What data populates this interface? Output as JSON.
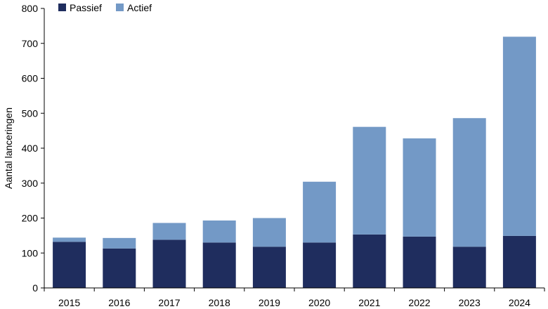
{
  "chart_data": {
    "type": "bar",
    "stacked": true,
    "categories": [
      "2015",
      "2016",
      "2017",
      "2018",
      "2019",
      "2020",
      "2021",
      "2022",
      "2023",
      "2024"
    ],
    "series": [
      {
        "name": "Passief",
        "color": "#1f2d5e",
        "values": [
          132,
          113,
          138,
          130,
          118,
          130,
          153,
          147,
          118,
          149
        ]
      },
      {
        "name": "Actief",
        "color": "#7399c6",
        "values": [
          12,
          30,
          48,
          63,
          82,
          174,
          308,
          281,
          368,
          570
        ]
      }
    ],
    "title": "",
    "xlabel": "",
    "ylabel": "Aantal lanceringen",
    "ylim": [
      0,
      800
    ],
    "yticks": [
      0,
      100,
      200,
      300,
      400,
      500,
      600,
      700,
      800
    ],
    "grid": false,
    "legend_position": "top-left"
  }
}
